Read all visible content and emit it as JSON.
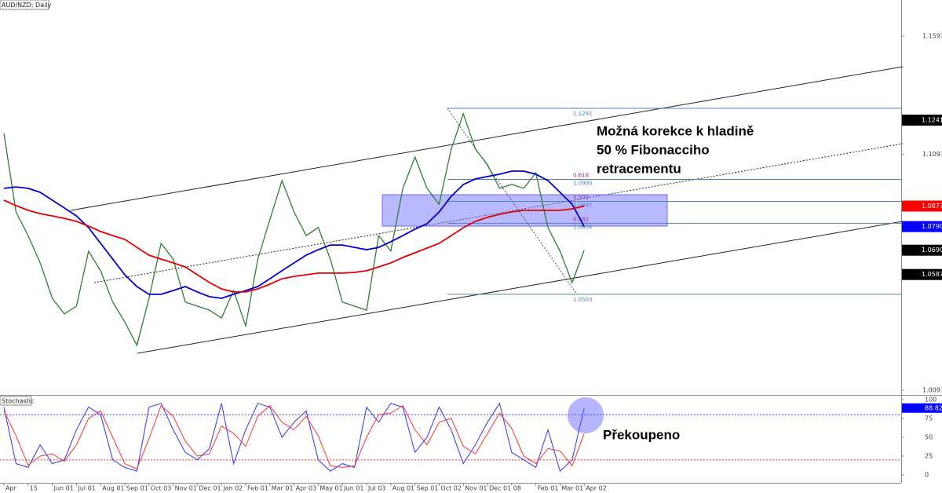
{
  "chart_data": {
    "type": "line",
    "title": "AUD/NZD: Daily",
    "categories": [
      "Apr",
      null,
      "15",
      null,
      "Jun 01",
      null,
      "Jul 01",
      null,
      "Aug 01",
      null,
      "Sep 01",
      null,
      "Oct 03",
      null,
      "Nov 01",
      null,
      "Dec 01",
      null,
      "Jan 02",
      null,
      "Feb 01",
      null,
      "Mar 01",
      null,
      "Apr 03",
      null,
      "May 01",
      null,
      "Jun 01",
      null,
      "Jul 03",
      null,
      "Aug 01",
      null,
      "Sep 01",
      null,
      "Oct 02",
      null,
      "Nov 01",
      null,
      "Dec 01",
      null,
      "08",
      null,
      "Feb 01",
      null,
      "Mar 01",
      null,
      "Apr 02"
    ],
    "series": [
      {
        "color": "#2e7d32",
        "values": [
          1.1185,
          1.0852,
          1.0752,
          1.0636,
          1.0486,
          1.042,
          1.0453,
          1.0686,
          1.0603,
          1.047,
          1.0386,
          1.0287,
          1.0486,
          1.0719,
          1.0652,
          1.047,
          1.0453,
          1.0436,
          1.0403,
          1.0519,
          1.037,
          1.0652,
          1.0819,
          1.0985,
          1.0852,
          1.0752,
          1.0786,
          1.0652,
          1.047,
          1.0453,
          1.0436,
          1.0752,
          1.0686,
          1.0952,
          1.1085,
          1.0952,
          1.0885,
          1.1118,
          1.1268,
          1.1118,
          1.1052,
          1.0952,
          1.0969,
          1.0952,
          1.1018,
          1.0786,
          1.0686,
          1.0553,
          1.069
        ]
      },
      {
        "color": "#0000cc",
        "values": [
          1.0952,
          1.0958,
          1.0952,
          1.0935,
          1.0902,
          1.0869,
          1.0835,
          1.0785,
          1.0719,
          1.0652,
          1.0586,
          1.0536,
          1.0503,
          1.0503,
          1.0519,
          1.0536,
          1.0513,
          1.0493,
          1.0486,
          1.0503,
          1.0519,
          1.0536,
          1.0569,
          1.0603,
          1.0636,
          1.0669,
          1.0692,
          1.0712,
          1.0712,
          1.0702,
          1.0692,
          1.0702,
          1.0726,
          1.0752,
          1.0779,
          1.0802,
          1.0852,
          1.0918,
          1.0968,
          1.0992,
          1.1002,
          1.1012,
          1.1025,
          1.1025,
          1.1012,
          1.0985,
          1.0935,
          1.0885,
          1.079
        ]
      },
      {
        "color": "#e00000",
        "values": [
          1.0902,
          1.0879,
          1.0859,
          1.0845,
          1.0835,
          1.0825,
          1.0812,
          1.0792,
          1.0769,
          1.0752,
          1.0736,
          1.0702,
          1.0669,
          1.0652,
          1.0636,
          1.0619,
          1.0586,
          1.0553,
          1.0526,
          1.0513,
          1.0513,
          1.0526,
          1.0546,
          1.0569,
          1.0579,
          1.0586,
          1.0593,
          1.0593,
          1.0593,
          1.0596,
          1.0603,
          1.0619,
          1.0636,
          1.0659,
          1.0679,
          1.0699,
          1.0719,
          1.0752,
          1.0785,
          1.0812,
          1.0829,
          1.0842,
          1.0852,
          1.0859,
          1.0859,
          1.0859,
          1.0859,
          1.0865,
          1.0877
        ]
      }
    ],
    "ylim": [
      1.0077,
      1.175
    ],
    "yticks": [
      1.1597,
      1.1097,
      1.0097
    ],
    "grid": false,
    "price_tags": [
      {
        "price": 1.1241,
        "color": "#000000"
      },
      {
        "price": 1.0877,
        "color": "#ff0000"
      },
      {
        "price": {
          "value": 1.079,
          "label": "1.0790"
        },
        "color": "#0000ff"
      },
      {
        "price": {
          "value": 1.069,
          "label": "1.0690"
        },
        "color": "#000000"
      },
      {
        "price": 1.0587,
        "color": "#000000"
      }
    ],
    "zone": {
      "low": 1.0792,
      "high": 1.0925,
      "color": "#8080ff"
    },
    "fibonacci": [
      {
        "price": 1.1291
      },
      {
        "ratio": 0.618,
        "price": {
          "value": 1.099,
          "label": "1.0990"
        }
      },
      {
        "ratio": {
          "value": 0.5,
          "label": "0.500"
        },
        "price": 1.0897
      },
      {
        "ratio": 0.382,
        "price": 1.0804
      },
      {
        "price": 1.0503
      }
    ],
    "fib_color": "#4f81bd",
    "fib_ratio_color": "#993399",
    "annotations": [
      "Možná korekce k hladině",
      "50 % Fibonacciho",
      "retracementu",
      "Překoupeno"
    ],
    "stochastic": {
      "title": "Stochastic",
      "ylim": [
        -10.4,
        106.3
      ],
      "yticks": [
        100,
        75,
        50,
        25,
        0
      ],
      "levels": [
        {
          "value": 80,
          "color": "#4040ff"
        },
        {
          "value": 20,
          "color": "#ff3030"
        }
      ],
      "series": [
        {
          "color": "#3030ff",
          "values": [
            90,
            15,
            10,
            40,
            15,
            20,
            60,
            90,
            80,
            20,
            10,
            5,
            90,
            95,
            60,
            30,
            20,
            35,
            95,
            15,
            60,
            95,
            90,
            50,
            70,
            85,
            20,
            5,
            15,
            10,
            90,
            70,
            95,
            90,
            30,
            50,
            90,
            60,
            15,
            40,
            70,
            95,
            30,
            20,
            10,
            60,
            5,
            20,
            88.82
          ]
        },
        {
          "color": "#ff3030",
          "values": [
            85,
            52,
            13,
            25,
            28,
            18,
            40,
            75,
            85,
            50,
            15,
            8,
            48,
            92,
            78,
            45,
            25,
            28,
            65,
            55,
            38,
            78,
            92,
            70,
            60,
            78,
            52,
            12,
            10,
            12,
            50,
            80,
            82,
            92,
            60,
            40,
            70,
            75,
            38,
            28,
            55,
            82,
            62,
            25,
            15,
            35,
            32,
            12,
            55
          ]
        }
      ],
      "value_tag": {
        "value": 88.82,
        "color": "#0000ff"
      }
    }
  }
}
